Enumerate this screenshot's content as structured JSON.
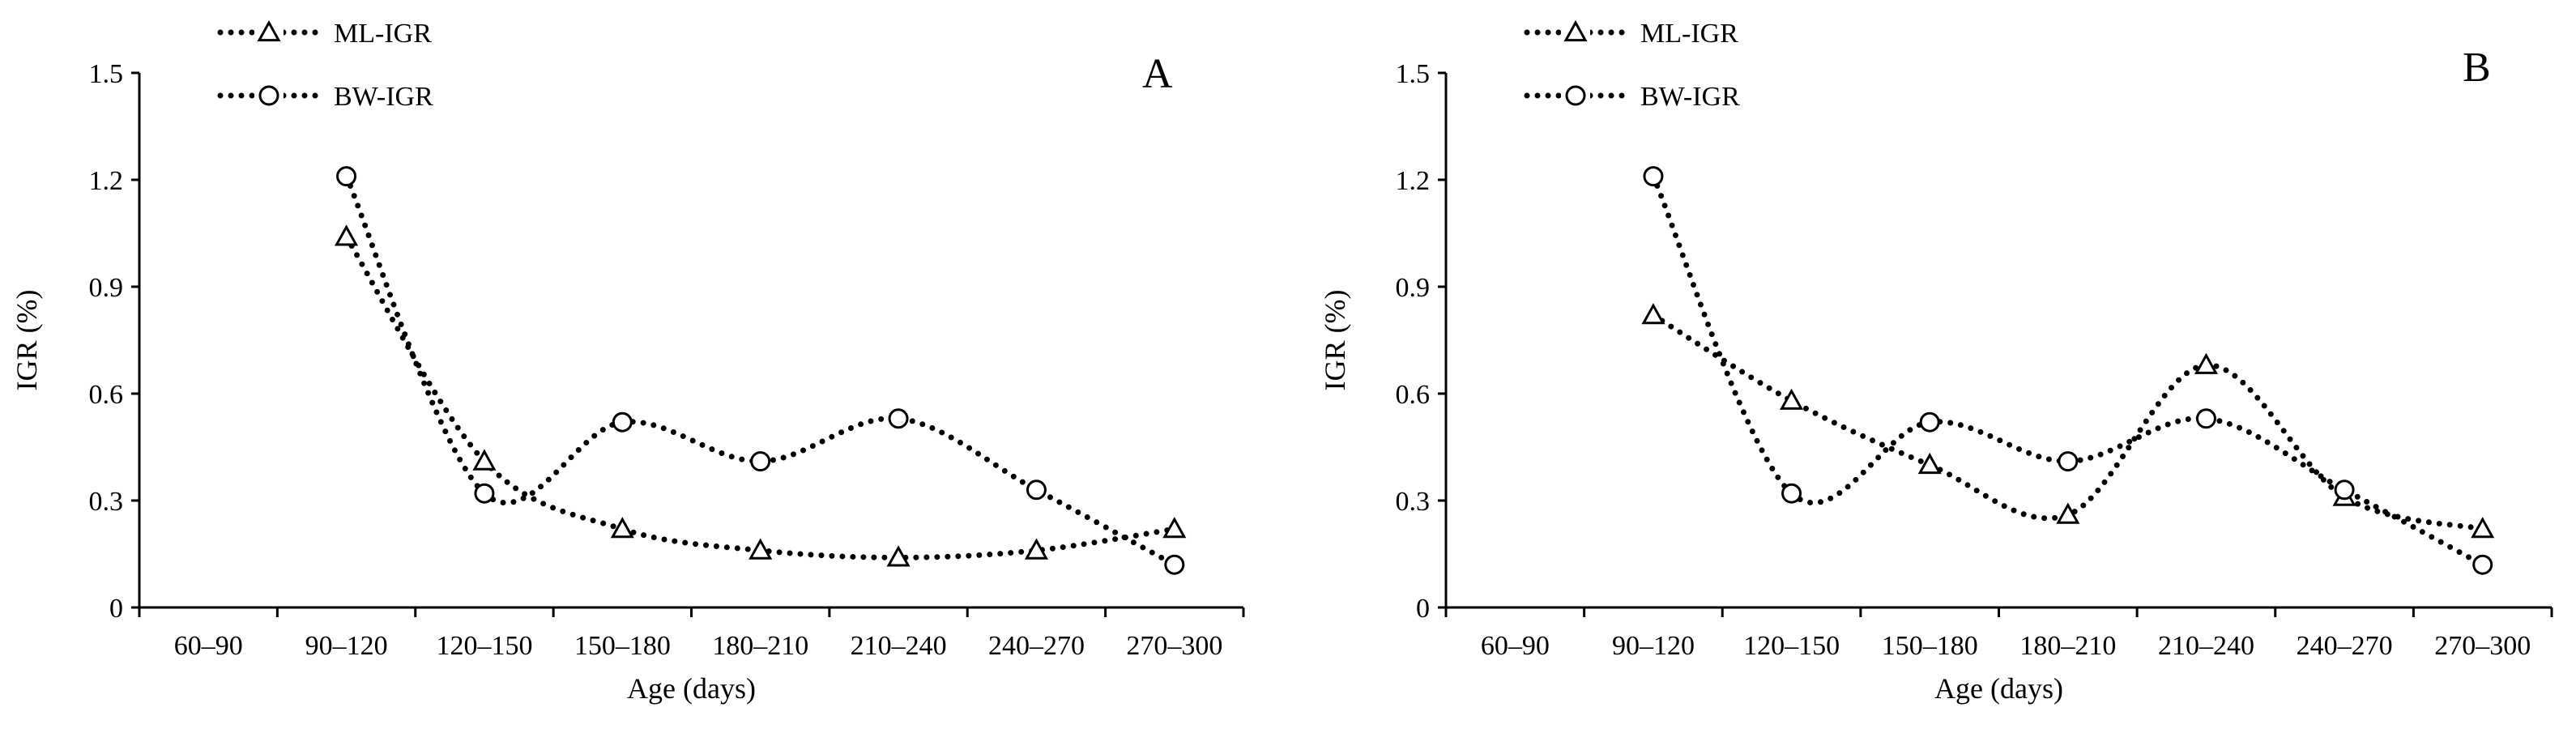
{
  "chart_data": [
    {
      "panel_label": "A",
      "type": "line",
      "xlabel": "Age (days)",
      "ylabel": "IGR (%)",
      "categories": [
        "60–90",
        "90–120",
        "120–150",
        "150–180",
        "180–210",
        "210–240",
        "240–270",
        "270–300"
      ],
      "yticks": [
        "0",
        "0.3",
        "0.6",
        "0.9",
        "1.2",
        "1.5"
      ],
      "ylim": [
        0,
        1.5
      ],
      "grid": false,
      "legend_position": "top-left",
      "series": [
        {
          "name": "ML-IGR",
          "marker": "triangle",
          "values": [
            null,
            1.04,
            0.41,
            0.22,
            0.16,
            0.14,
            0.16,
            0.22
          ]
        },
        {
          "name": "BW-IGR",
          "marker": "circle",
          "values": [
            null,
            1.21,
            0.32,
            0.52,
            0.41,
            0.53,
            0.33,
            0.12
          ]
        }
      ]
    },
    {
      "panel_label": "B",
      "type": "line",
      "xlabel": "Age (days)",
      "ylabel": "IGR (%)",
      "categories": [
        "60–90",
        "90–120",
        "120–150",
        "150–180",
        "180–210",
        "210–240",
        "240–270",
        "270–300"
      ],
      "yticks": [
        "0",
        "0.3",
        "0.6",
        "0.9",
        "1.2",
        "1.5"
      ],
      "ylim": [
        0,
        1.5
      ],
      "grid": false,
      "legend_position": "top-left",
      "series": [
        {
          "name": "ML-IGR",
          "marker": "triangle",
          "values": [
            null,
            0.82,
            0.58,
            0.4,
            0.26,
            0.68,
            0.31,
            0.22
          ]
        },
        {
          "name": "BW-IGR",
          "marker": "circle",
          "values": [
            null,
            1.21,
            0.32,
            0.52,
            0.41,
            0.53,
            0.33,
            0.12
          ]
        }
      ]
    }
  ]
}
